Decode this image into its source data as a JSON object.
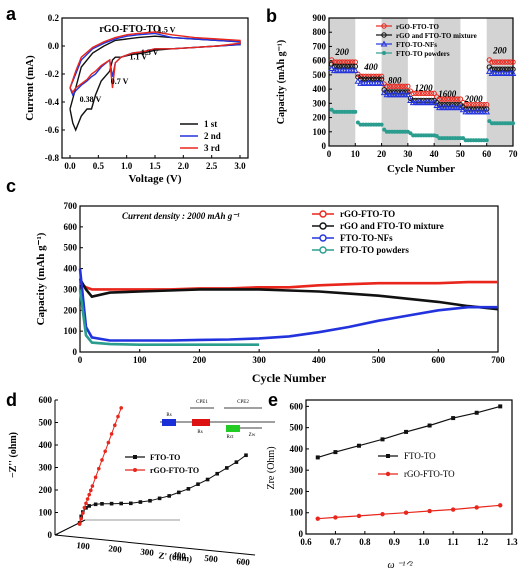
{
  "panels": {
    "a": {
      "letter": "a",
      "title": "rGO-FTO-TO",
      "xlabel": "Voltage (V)",
      "ylabel": "Current (mA)",
      "xticks": [
        "0.0",
        "0.5",
        "1.0",
        "1.5",
        "2.0",
        "2.5",
        "3.0"
      ],
      "yticks": [
        "0.2",
        "0.0",
        "-0.2",
        "-0.4",
        "-0.6",
        "-0.8"
      ],
      "legend": [
        "1 st",
        "2 nd",
        "3 rd"
      ],
      "annotations": [
        "1.5 V",
        "1.3 V",
        "1.1 V",
        "0.7 V",
        "0.38 V"
      ]
    },
    "b": {
      "letter": "b",
      "xlabel": "Cycle Number",
      "ylabel": "Capacity (mAh g⁻¹)",
      "xticks": [
        "0",
        "10",
        "20",
        "30",
        "40",
        "50",
        "60",
        "70"
      ],
      "yticks": [
        "0",
        "100",
        "200",
        "300",
        "400",
        "500",
        "600",
        "700",
        "800",
        "900"
      ],
      "legend": [
        "rGO-FTO-TO",
        "rGO and FTO-TO mixture",
        "FTO-TO-NFs",
        "FTO-TO powders"
      ],
      "rate_labels": [
        "200",
        "400",
        "800",
        "1200",
        "1600",
        "2000",
        "200"
      ]
    },
    "c": {
      "letter": "c",
      "xlabel": "Cycle Number",
      "ylabel": "Capacity (mAh g⁻¹)",
      "xticks": [
        "0",
        "100",
        "200",
        "300",
        "400",
        "500",
        "600",
        "700"
      ],
      "yticks": [
        "0",
        "100",
        "200",
        "300",
        "400",
        "500",
        "600",
        "700"
      ],
      "annotation": "Current density : 2000 mAh g⁻¹",
      "legend": [
        "rGO-FTO-TO",
        "rGO and FTO-TO mixture",
        "FTO-TO-NFs",
        "FTO-TO powders"
      ]
    },
    "d": {
      "letter": "d",
      "xlabel": "Z' (ohm)",
      "ylabel": "−Z'' (ohm)",
      "xticks": [
        "100",
        "200",
        "300",
        "400",
        "500",
        "600"
      ],
      "yticks": [
        "0",
        "100",
        "200",
        "300",
        "400",
        "500",
        "600"
      ],
      "legend": [
        "FTO-TO",
        "rGO-FTO-TO"
      ],
      "circuit_labels": [
        "Rs",
        "CPE1",
        "Rs",
        "CPE2",
        "Rct",
        "Zw"
      ]
    },
    "e": {
      "letter": "e",
      "xlabel": "ω ⁻¹ᐟ²",
      "ylabel": "Zre (Ohm)",
      "xticks": [
        "0.6",
        "0.7",
        "0.8",
        "0.9",
        "1.0",
        "1.1",
        "1.2",
        "1.3"
      ],
      "yticks": [
        "0",
        "100",
        "200",
        "300",
        "400",
        "500",
        "600"
      ],
      "legend": [
        "FTO-TO",
        "rGO-FTO-TO"
      ]
    }
  },
  "colors": {
    "red": "#e8261c",
    "black": "#111111",
    "blue": "#2233dd",
    "teal": "#2a9d8f",
    "gray_band": "#d3d3d3"
  },
  "chart_data": [
    {
      "panel": "a",
      "type": "line",
      "title": "rGO-FTO-TO",
      "xlabel": "Voltage (V)",
      "ylabel": "Current (mA)",
      "xlim": [
        0,
        3.0
      ],
      "ylim": [
        -0.8,
        0.2
      ],
      "series": [
        {
          "name": "1 st",
          "x": [
            0.0,
            0.05,
            0.1,
            0.2,
            0.3,
            0.38,
            0.45,
            0.55,
            0.7,
            0.75,
            0.8,
            0.9,
            1.1,
            1.3,
            1.5,
            1.8,
            2.2,
            2.6,
            3.0,
            3.0,
            2.6,
            2.2,
            1.8,
            1.5,
            1.2,
            1.0,
            0.8,
            0.6,
            0.4,
            0.2,
            0.1,
            0.0
          ],
          "y": [
            -0.45,
            -0.55,
            -0.6,
            -0.5,
            -0.45,
            -0.45,
            -0.35,
            -0.25,
            -0.18,
            -0.1,
            -0.08,
            -0.08,
            -0.06,
            -0.05,
            -0.03,
            -0.02,
            -0.01,
            0.0,
            0.01,
            0.03,
            0.04,
            0.05,
            0.06,
            0.07,
            0.06,
            0.05,
            0.04,
            0.0,
            -0.05,
            -0.15,
            -0.3,
            -0.45
          ]
        },
        {
          "name": "2 nd",
          "x": [
            0.0,
            0.05,
            0.1,
            0.2,
            0.3,
            0.38,
            0.45,
            0.55,
            0.7,
            0.75,
            0.8,
            0.9,
            1.1,
            1.3,
            1.5,
            1.8,
            2.2,
            2.6,
            3.0,
            3.0,
            2.6,
            2.2,
            1.8,
            1.5,
            1.2,
            1.0,
            0.8,
            0.6,
            0.4,
            0.2,
            0.1,
            0.0
          ],
          "y": [
            -0.3,
            -0.35,
            -0.32,
            -0.28,
            -0.25,
            -0.22,
            -0.2,
            -0.15,
            -0.1,
            -0.22,
            -0.12,
            -0.08,
            -0.05,
            -0.04,
            -0.02,
            -0.02,
            -0.01,
            0.0,
            0.01,
            0.03,
            0.04,
            0.05,
            0.06,
            0.09,
            0.08,
            0.07,
            0.05,
            0.02,
            -0.02,
            -0.1,
            -0.2,
            -0.3
          ]
        },
        {
          "name": "3 rd",
          "x": [
            0.0,
            0.05,
            0.1,
            0.2,
            0.3,
            0.38,
            0.45,
            0.55,
            0.7,
            0.75,
            0.8,
            0.9,
            1.1,
            1.3,
            1.5,
            1.8,
            2.2,
            2.6,
            3.0,
            3.0,
            2.6,
            2.2,
            1.8,
            1.5,
            1.2,
            1.0,
            0.8,
            0.6,
            0.4,
            0.2,
            0.1,
            0.0
          ],
          "y": [
            -0.3,
            -0.33,
            -0.3,
            -0.27,
            -0.24,
            -0.2,
            -0.18,
            -0.14,
            -0.1,
            -0.3,
            -0.12,
            -0.08,
            -0.05,
            -0.04,
            -0.02,
            -0.02,
            -0.01,
            0.0,
            0.02,
            0.04,
            0.05,
            0.06,
            0.08,
            0.1,
            0.09,
            0.08,
            0.06,
            0.03,
            -0.01,
            -0.08,
            -0.18,
            -0.3
          ]
        }
      ]
    },
    {
      "panel": "b",
      "type": "scatter",
      "xlabel": "Cycle Number",
      "ylabel": "Capacity (mAh g⁻¹)",
      "xlim": [
        0,
        70
      ],
      "ylim": [
        0,
        900
      ],
      "shaded_bands": [
        [
          0,
          10
        ],
        [
          20,
          30
        ],
        [
          40,
          50
        ],
        [
          60,
          70
        ]
      ],
      "rate_labels": [
        {
          "text": "200",
          "x": 5,
          "y": 640
        },
        {
          "text": "400",
          "x": 16,
          "y": 535
        },
        {
          "text": "800",
          "x": 25,
          "y": 440
        },
        {
          "text": "1200",
          "x": 36,
          "y": 385
        },
        {
          "text": "1600",
          "x": 45,
          "y": 345
        },
        {
          "text": "2000",
          "x": 55,
          "y": 310
        },
        {
          "text": "200",
          "x": 65,
          "y": 650
        }
      ],
      "series": [
        {
          "name": "rGO-FTO-TO",
          "segments": [
            [
              1,
              10,
              590
            ],
            [
              11,
              20,
              490
            ],
            [
              21,
              30,
              420
            ],
            [
              31,
              40,
              370
            ],
            [
              41,
              50,
              330
            ],
            [
              51,
              60,
              290
            ],
            [
              61,
              70,
              590
            ]
          ]
        },
        {
          "name": "rGO and FTO-TO mixture",
          "segments": [
            [
              1,
              10,
              560
            ],
            [
              11,
              20,
              470
            ],
            [
              21,
              30,
              380
            ],
            [
              31,
              40,
              320
            ],
            [
              41,
              50,
              290
            ],
            [
              51,
              60,
              260
            ],
            [
              61,
              70,
              540
            ]
          ]
        },
        {
          "name": "FTO-TO-NFs",
          "segments": [
            [
              1,
              10,
              530
            ],
            [
              11,
              20,
              440
            ],
            [
              21,
              30,
              360
            ],
            [
              31,
              40,
              305
            ],
            [
              41,
              50,
              270
            ],
            [
              51,
              60,
              240
            ],
            [
              61,
              70,
              510
            ]
          ]
        },
        {
          "name": "FTO-TO powders",
          "segments": [
            [
              1,
              10,
              240
            ],
            [
              11,
              20,
              150
            ],
            [
              21,
              30,
              100
            ],
            [
              31,
              40,
              75
            ],
            [
              41,
              50,
              55
            ],
            [
              51,
              60,
              40
            ],
            [
              61,
              70,
              160
            ]
          ]
        }
      ]
    },
    {
      "panel": "c",
      "type": "line",
      "xlabel": "Cycle Number",
      "ylabel": "Capacity (mAh g⁻¹)",
      "xlim": [
        0,
        700
      ],
      "ylim": [
        0,
        700
      ],
      "series": [
        {
          "name": "rGO-FTO-TO",
          "x": [
            0,
            10,
            20,
            50,
            100,
            150,
            200,
            250,
            300,
            350,
            400,
            450,
            500,
            550,
            600,
            650,
            700
          ],
          "y": [
            330,
            310,
            300,
            300,
            300,
            300,
            305,
            305,
            310,
            310,
            320,
            325,
            330,
            330,
            330,
            335,
            335
          ]
        },
        {
          "name": "rGO and FTO-TO mixture",
          "x": [
            0,
            10,
            20,
            50,
            100,
            150,
            200,
            250,
            300,
            350,
            400,
            450,
            500,
            550,
            600,
            650,
            700
          ],
          "y": [
            350,
            300,
            265,
            285,
            290,
            295,
            300,
            300,
            300,
            295,
            290,
            280,
            270,
            255,
            240,
            220,
            205
          ]
        },
        {
          "name": "FTO-TO-NFs",
          "x": [
            0,
            10,
            20,
            50,
            100,
            150,
            200,
            250,
            300,
            350,
            400,
            450,
            500,
            550,
            600,
            650,
            700
          ],
          "y": [
            400,
            120,
            70,
            55,
            55,
            55,
            58,
            60,
            65,
            75,
            95,
            120,
            150,
            175,
            200,
            215,
            215
          ]
        },
        {
          "name": "FTO-TO powders",
          "x": [
            0,
            10,
            20,
            50,
            100,
            150,
            200,
            250,
            300
          ],
          "y": [
            300,
            80,
            45,
            38,
            35,
            35,
            35,
            35,
            35
          ]
        }
      ]
    },
    {
      "panel": "d",
      "type": "scatter",
      "xlabel": "Z' (ohm)",
      "ylabel": "−Z'' (ohm)",
      "xlim": [
        0,
        620
      ],
      "ylim": [
        0,
        600
      ],
      "series": [
        {
          "name": "FTO-TO",
          "x": [
            90,
            95,
            100,
            110,
            120,
            140,
            160,
            190,
            220,
            250,
            280,
            310,
            340,
            370,
            400,
            430,
            460,
            490,
            520,
            550,
            580,
            610
          ],
          "y": [
            20,
            50,
            70,
            90,
            100,
            110,
            115,
            120,
            125,
            130,
            140,
            150,
            165,
            180,
            200,
            220,
            245,
            270,
            300,
            330,
            360,
            395
          ]
        },
        {
          "name": "rGO-FTO-TO",
          "x": [
            90,
            95,
            100,
            105,
            110,
            115,
            120,
            125,
            130,
            140,
            150,
            160,
            170,
            180,
            190,
            200,
            210,
            220
          ],
          "y": [
            15,
            40,
            65,
            90,
            110,
            130,
            150,
            170,
            190,
            230,
            270,
            310,
            350,
            390,
            430,
            470,
            510,
            550
          ]
        }
      ]
    },
    {
      "panel": "e",
      "type": "line",
      "xlabel": "ω ⁻¹ᐟ²",
      "ylabel": "Zre (Ohm)",
      "xlim": [
        0.6,
        1.3
      ],
      "ylim": [
        0,
        630
      ],
      "series": [
        {
          "name": "FTO-TO",
          "x": [
            0.64,
            0.7,
            0.78,
            0.86,
            0.94,
            1.02,
            1.1,
            1.18,
            1.26
          ],
          "y": [
            360,
            385,
            415,
            445,
            480,
            510,
            545,
            570,
            600
          ]
        },
        {
          "name": "rGO-FTO-TO",
          "x": [
            0.64,
            0.7,
            0.78,
            0.86,
            0.94,
            1.02,
            1.1,
            1.18,
            1.26
          ],
          "y": [
            72,
            78,
            85,
            93,
            100,
            108,
            115,
            125,
            135
          ]
        }
      ]
    }
  ]
}
